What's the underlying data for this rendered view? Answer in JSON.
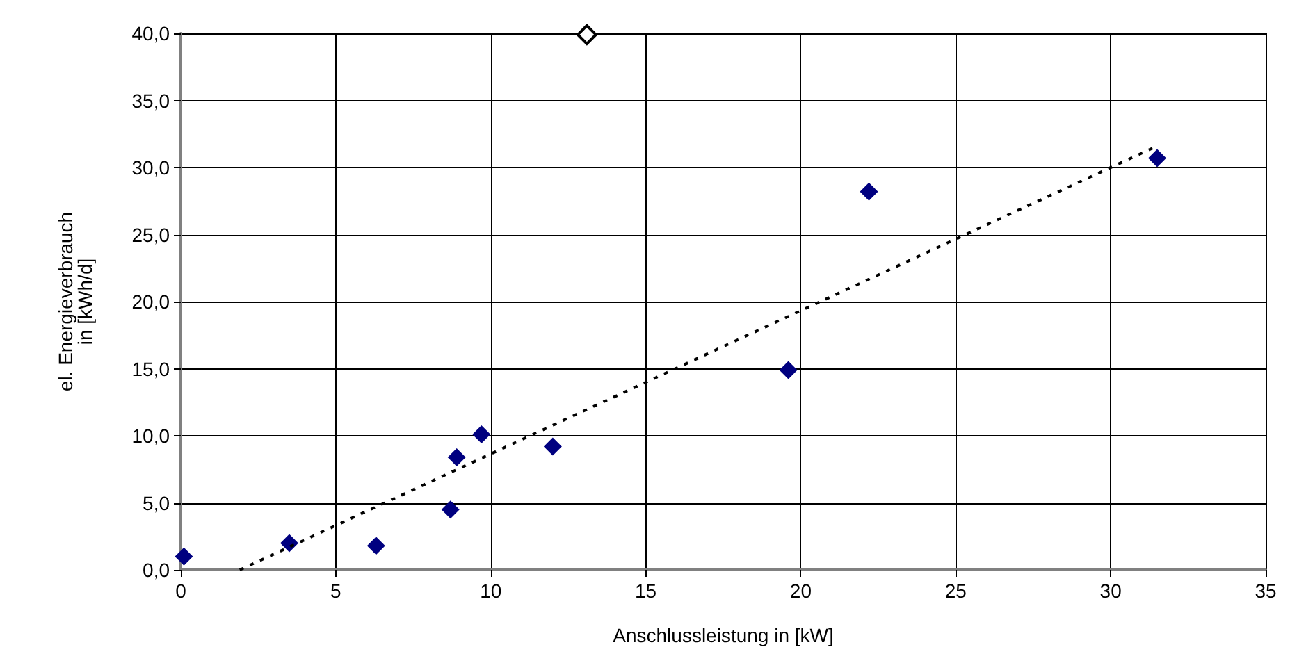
{
  "chart_data": {
    "type": "scatter",
    "xlabel": "Anschlussleistung in [kW]",
    "ylabel": "el. Energieverbrauch\nin [kWh/d]",
    "xlim": [
      0,
      35
    ],
    "xticks": [
      0,
      5,
      10,
      15,
      20,
      25,
      30,
      35
    ],
    "ylim": [
      0,
      40
    ],
    "yticks": [
      {
        "value": 0,
        "label": "0,0"
      },
      {
        "value": 5,
        "label": "5,0"
      },
      {
        "value": 10,
        "label": "10,0"
      },
      {
        "value": 15,
        "label": "15,0"
      },
      {
        "value": 20,
        "label": "20,0"
      },
      {
        "value": 25,
        "label": "25,0"
      },
      {
        "value": 30,
        "label": "30,0"
      },
      {
        "value": 35,
        "label": "35,0"
      },
      {
        "value": 40,
        "label": "40,0"
      }
    ],
    "grid": true,
    "marker": "diamond",
    "series": [
      {
        "color": "#000080",
        "x": [
          0.1,
          3.5,
          6.3,
          8.7,
          8.9,
          9.7,
          12.0,
          19.6,
          22.2,
          31.5
        ],
        "values": [
          1.0,
          2.0,
          1.8,
          4.5,
          8.4,
          10.1,
          9.2,
          14.9,
          28.2,
          30.7
        ]
      },
      {
        "color": "#ffffff",
        "x": [
          13.1
        ],
        "values": [
          39.9
        ]
      },
      {
        "type": "line",
        "color": "#000000",
        "line_style": "dotted",
        "marker": "none",
        "x": [
          1.9,
          31.5
        ],
        "values": [
          0,
          31.6
        ]
      }
    ]
  }
}
